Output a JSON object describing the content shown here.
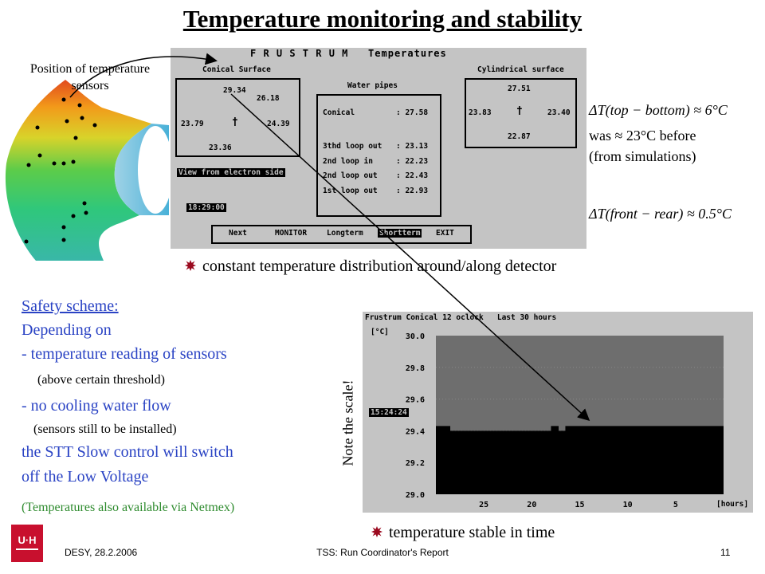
{
  "title": "Temperature monitoring and stability",
  "sensor_caption_line1": "Position of temperature",
  "sensor_caption_line2": "sensors",
  "frustrum": {
    "header": "F R U S T R U M   Temperatures",
    "conical_surface": {
      "label": "Conical Surface",
      "top": "29.34",
      "top_right": "26.18",
      "left": "23.79",
      "right": "24.39",
      "bottom": "23.36"
    },
    "water_pipes": {
      "label": "Water pipes",
      "rows": [
        {
          "name": "Conical",
          "value": ": 27.58"
        },
        {
          "name": "3thd loop out",
          "value": ": 23.13"
        },
        {
          "name": "2nd loop in",
          "value": ": 22.23"
        },
        {
          "name": "2nd loop out",
          "value": ": 22.43"
        },
        {
          "name": "1st loop out",
          "value": ": 22.93"
        }
      ]
    },
    "cylindrical_surface": {
      "label": "Cylindrical surface",
      "top": "27.51",
      "left": "23.83",
      "right": "23.40",
      "bottom": "22.87"
    },
    "view_label": "View from electron side",
    "clock": "18:29:00",
    "menu": [
      "Next",
      "MONITOR",
      "Longterm",
      "Shortterm",
      "EXIT"
    ]
  },
  "formulas": {
    "f1": "ΔT(top − bottom) ≈ 6°C",
    "f2a": "was ≈ 23°C before",
    "f2b": "(from simulations)",
    "f3": "ΔT(front − rear) ≈ 0.5°C"
  },
  "bullet1": "constant temperature distribution around/along detector",
  "bullet2": "temperature stable in time",
  "safety": {
    "l1": "Safety scheme:",
    "l2": "Depending on",
    "l3": "- temperature reading of sensors",
    "l4": "(above certain threshold)",
    "l5": "- no cooling water flow",
    "l6": "(sensors still to be installed)",
    "l7": "the STT Slow control will switch",
    "l8": "off the Low Voltage",
    "l9": "(Temperatures also available via Netmex)"
  },
  "note_scale": "Note the scale!",
  "chart_data": {
    "type": "area",
    "title": "Frustrum Conical 12 oclock   Last 30 hours",
    "unit_label": "[°C]",
    "cursor_time": "15:24:24",
    "xlabel": "[hours]",
    "xlim": [
      30,
      0
    ],
    "x_ticks": [
      "25",
      "20",
      "15",
      "10",
      "5"
    ],
    "ylim": [
      29.0,
      30.0
    ],
    "y_ticks": [
      "30.0",
      "29.8",
      "29.6",
      "29.4",
      "29.2",
      "29.0"
    ],
    "series": [
      {
        "x": [
          30,
          28.5,
          28.5,
          18.0,
          18.0,
          17.2,
          17.2,
          16.5,
          16.5,
          0
        ],
        "y": [
          29.43,
          29.43,
          29.4,
          29.4,
          29.43,
          29.43,
          29.4,
          29.4,
          29.43,
          29.43
        ]
      }
    ]
  },
  "footer": {
    "left": "DESY, 28.2.2006",
    "center": "TSS: Run Coordinator's Report",
    "right": "11",
    "logo": "UHH"
  },
  "colors": {
    "bullet": "#9b0a1f",
    "safety_text": "#2a43c4",
    "netmex_text": "#2e8b2e",
    "logo": "#c8102e"
  }
}
